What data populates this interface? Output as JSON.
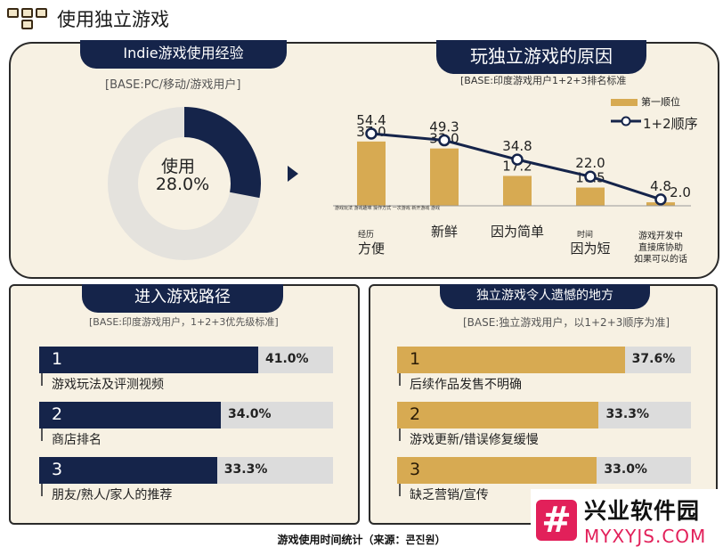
{
  "header": {
    "title": "使用独立游戏",
    "logo_icon": "grid-logo-icon"
  },
  "panel_experience": {
    "tab": "Indie游戏使用经验",
    "base": "[BASE:PC/移动/游戏用户]",
    "donut_label": "使用",
    "donut_value": "28.0%",
    "donut_fraction": 0.28,
    "colors": {
      "used": "#15244a",
      "rest": "#e4e2dd"
    }
  },
  "arrow_icon": "play-arrow-icon",
  "panel_reasons": {
    "tab": "玩独立游戏的原因",
    "base": "[BASE:印度游戏用户1+2+3排名标准",
    "legend": {
      "first": "第一顺位",
      "cumulative": "1+2顺序"
    },
    "tiny_axis_text": "游戏玩法  游戏趣味  操作方式  一次游戏  新开游戏  游戏"
  },
  "chart_data": [
    {
      "type": "bar+line",
      "categories": [
        {
          "small": "经历",
          "big": "方便"
        },
        {
          "small": "",
          "big": "新鲜"
        },
        {
          "small": "",
          "big": "因为简单"
        },
        {
          "small": "时间",
          "big": "因为短"
        },
        {
          "small": "游戏开发中\n直接席协助\n如果可以的话",
          "big": ""
        }
      ],
      "series": [
        {
          "name": "第一顺位",
          "type": "bar",
          "values": [
            37.0,
            33.0,
            17.2,
            10.5,
            2.0
          ],
          "labels": [
            "37.0",
            "33.0",
            "17.2",
            "10.5",
            "2.0"
          ],
          "color": "#d7aa52"
        },
        {
          "name": "1+2顺序",
          "type": "line",
          "values": [
            54.4,
            49.3,
            34.8,
            22.0,
            4.8
          ],
          "labels": [
            "54.4",
            "49.3",
            "34.8",
            "22.0",
            "4.8"
          ],
          "color": "#15244a"
        }
      ],
      "ylim": [
        0,
        60
      ]
    },
    {
      "type": "bar",
      "orientation": "horizontal",
      "title": "进入游戏路径",
      "subtitle": "[BASE:印度游戏用户，1+2+3优先级标准]",
      "categories": [
        "游戏玩法及评测视频",
        "商店排名",
        "朋友/熟人/家人的推荐"
      ],
      "ranks": [
        "1",
        "2",
        "3"
      ],
      "values": [
        41.0,
        34.0,
        33.3
      ],
      "labels": [
        "41.0%",
        "34.0%",
        "33.3%"
      ],
      "color": "#15244a",
      "xlim": [
        0,
        50
      ]
    },
    {
      "type": "bar",
      "orientation": "horizontal",
      "title": "独立游戏令人遗憾的地方",
      "subtitle": "[BASE:独立游戏用户，以1+2+3顺序为准]",
      "categories": [
        "后续作品发售不明确",
        "游戏更新/错误修复缓慢",
        "缺乏营销/宣传"
      ],
      "ranks": [
        "1",
        "2",
        "3"
      ],
      "values": [
        37.6,
        33.3,
        33.0
      ],
      "labels": [
        "37.6%",
        "33.3%",
        "33.0%"
      ],
      "color": "#d7aa52",
      "xlim": [
        0,
        50
      ]
    }
  ],
  "footer": "游戏使用时间统计（来源：콘진원）",
  "watermark": {
    "icon": "hash-logo-icon",
    "title": "兴业软件园",
    "url": "MYXYJS.COM"
  }
}
